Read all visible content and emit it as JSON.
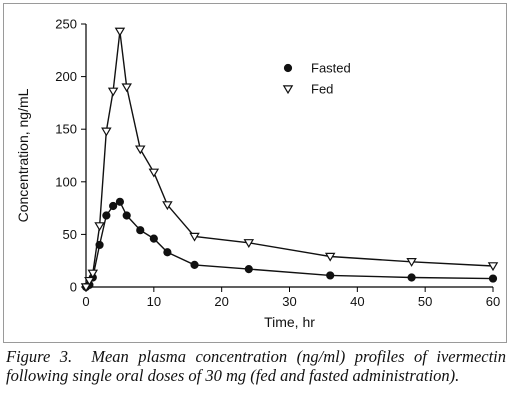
{
  "chart_data": {
    "type": "line",
    "title": "",
    "xlabel": "Time, hr",
    "ylabel": "Concentration, ng/mL",
    "xlim": [
      0,
      60
    ],
    "ylim": [
      0,
      250
    ],
    "xticks": [
      0,
      10,
      20,
      30,
      40,
      50,
      60
    ],
    "yticks": [
      0,
      50,
      100,
      150,
      200,
      250
    ],
    "grid": false,
    "legend_position": "top-center",
    "series": [
      {
        "name": "Fasted",
        "marker": "filled-circle",
        "x": [
          0,
          0.5,
          1,
          2,
          3,
          4,
          5,
          6,
          8,
          10,
          12,
          16,
          24,
          36,
          48,
          60
        ],
        "y": [
          0,
          2,
          9,
          40,
          68,
          77,
          81,
          68,
          54,
          46,
          33,
          21,
          17,
          11,
          9,
          8
        ]
      },
      {
        "name": "Fed",
        "marker": "open-triangle-down",
        "x": [
          0,
          0.5,
          1,
          2,
          3,
          4,
          5,
          6,
          8,
          10,
          12,
          16,
          24,
          36,
          48,
          60
        ],
        "y": [
          0,
          6,
          13,
          58,
          148,
          186,
          243,
          190,
          131,
          109,
          78,
          48,
          42,
          29,
          24,
          20
        ]
      }
    ]
  },
  "caption": {
    "label": "Figure 3.",
    "text": "Mean plasma concentration (ng/ml) profiles of ivermectin following single oral doses of 30 mg (fed and fasted administration)."
  }
}
